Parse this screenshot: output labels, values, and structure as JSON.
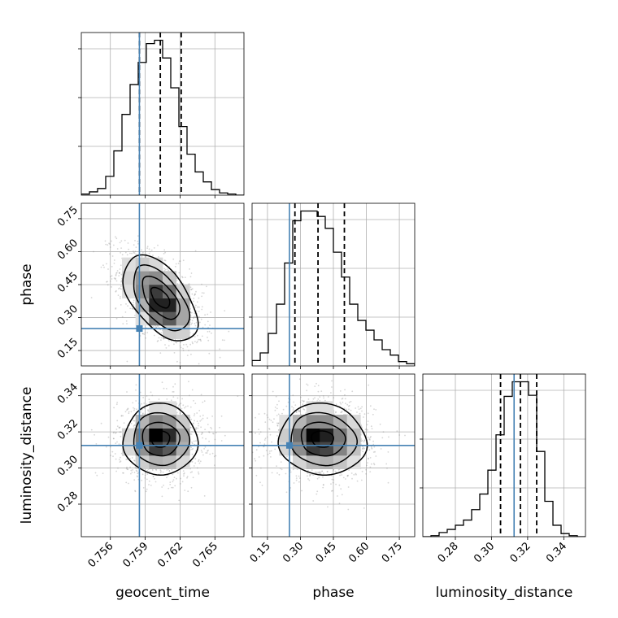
{
  "chart_data": {
    "type": "corner",
    "parameters": [
      {
        "name": "geocent_time",
        "label": "geocent_time",
        "range": [
          0.7535,
          0.7675
        ],
        "ticks": [
          0.756,
          0.759,
          0.762,
          0.765
        ],
        "tick_labels": [
          "0.756",
          "0.759",
          "0.762",
          "0.765"
        ],
        "truth": 0.7585,
        "quantiles": [
          0.7585,
          0.7603,
          0.7621
        ],
        "hist_bins": [
          0.7535,
          0.7542,
          0.7549,
          0.7556,
          0.7563,
          0.757,
          0.7577,
          0.7584,
          0.7591,
          0.7598,
          0.7605,
          0.7612,
          0.7619,
          0.7626,
          0.7633,
          0.764,
          0.7647,
          0.7654,
          0.7661,
          0.7668,
          0.7675
        ],
        "hist_values": [
          1,
          3,
          6,
          17,
          40,
          73,
          100,
          120,
          137,
          140,
          124,
          97,
          62,
          37,
          21,
          12,
          5,
          2,
          1,
          0
        ]
      },
      {
        "name": "phase",
        "label": "phase",
        "range": [
          0.08,
          0.82
        ],
        "ticks": [
          0.15,
          0.3,
          0.45,
          0.6,
          0.75
        ],
        "tick_labels": [
          "0.15",
          "0.30",
          "0.45",
          "0.60",
          "0.75"
        ],
        "truth": 0.25,
        "quantiles": [
          0.275,
          0.38,
          0.5
        ],
        "hist_bins": [
          0.08,
          0.117,
          0.154,
          0.191,
          0.228,
          0.265,
          0.302,
          0.339,
          0.376,
          0.413,
          0.45,
          0.487,
          0.524,
          0.561,
          0.598,
          0.635,
          0.672,
          0.709,
          0.746,
          0.783,
          0.82
        ],
        "hist_values": [
          5,
          12,
          30,
          57,
          95,
          134,
          143,
          143,
          138,
          127,
          105,
          82,
          57,
          42,
          33,
          24,
          15,
          10,
          4,
          2
        ]
      },
      {
        "name": "luminosity_distance",
        "label": "luminosity_distance",
        "range": [
          0.262,
          0.352
        ],
        "ticks": [
          0.28,
          0.3,
          0.32,
          0.34
        ],
        "tick_labels": [
          "0.28",
          "0.30",
          "0.32",
          "0.34"
        ],
        "truth": 0.3125,
        "quantiles": [
          0.305,
          0.316,
          0.325
        ],
        "hist_bins": [
          0.262,
          0.2665,
          0.271,
          0.2755,
          0.28,
          0.2845,
          0.289,
          0.2935,
          0.298,
          0.3025,
          0.307,
          0.3115,
          0.316,
          0.3205,
          0.325,
          0.3295,
          0.334,
          0.3385,
          0.343,
          0.3475,
          0.352
        ],
        "hist_values": [
          0,
          1,
          4,
          7,
          11,
          16,
          26,
          41,
          64,
          98,
          135,
          149,
          149,
          136,
          82,
          34,
          11,
          3,
          1,
          0
        ]
      }
    ],
    "pairs": [
      {
        "x": "geocent_time",
        "y": "phase",
        "mean": [
          0.7603,
          0.39
        ],
        "sd": [
          0.0016,
          0.095
        ],
        "corr": -0.55,
        "mode": [
          0.7604,
          0.33
        ]
      },
      {
        "x": "geocent_time",
        "y": "luminosity_distance",
        "mean": [
          0.7603,
          0.316
        ],
        "sd": [
          0.0016,
          0.0095
        ],
        "corr": 0.0,
        "mode": [
          0.7602,
          0.317
        ]
      },
      {
        "x": "phase",
        "y": "luminosity_distance",
        "mean": [
          0.4,
          0.316
        ],
        "sd": [
          0.1,
          0.0095
        ],
        "corr": -0.05,
        "mode": [
          0.36,
          0.316
        ]
      }
    ],
    "contour_levels_sigma": [
      0.5,
      1.0,
      1.5,
      2.0
    ],
    "grid": true,
    "truth_color": "#4682b4",
    "line_color": "#000000"
  }
}
